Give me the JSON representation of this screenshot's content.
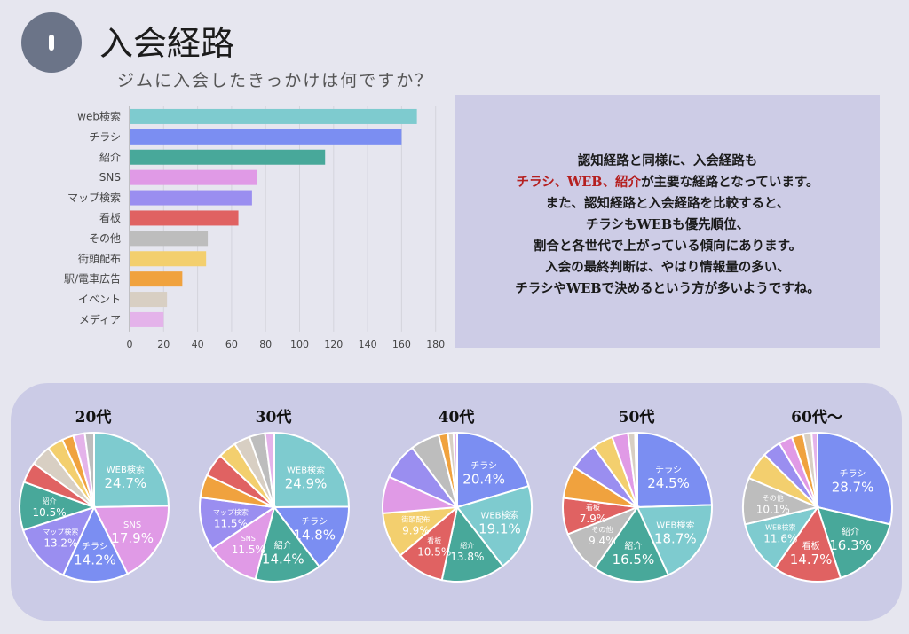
{
  "header": {
    "badge_icon": "circle-badge-icon",
    "title": "入会経路",
    "subtitle": "ジムに入会したきっかけは何ですか？"
  },
  "note": {
    "line1": "認知経路と同様に、入会経路も",
    "line2_hl": "チラシ、WEB、紹介",
    "line2_rest": "が主要な経路となっています。",
    "line3": "また、認知経路と入会経路を比較すると、",
    "line4": "チラシもWEBも優先順位、",
    "line5": "割合と各世代で上がっている傾向にあります。",
    "line6": "入会の最終判断は、やはり情報量の多い、",
    "line7": "チラシやWEBで決めるという方が多いようですね。"
  },
  "chart_data": [
    {
      "type": "bar",
      "orientation": "horizontal",
      "categories": [
        "web検索",
        "チラシ",
        "紹介",
        "SNS",
        "マップ検索",
        "看板",
        "その他",
        "街頭配布",
        "駅/電車広告",
        "イベント",
        "メディア"
      ],
      "values": [
        169,
        160,
        115,
        75,
        72,
        64,
        46,
        45,
        31,
        22,
        20
      ],
      "colors": [
        "#7ecbcf",
        "#7b8ef2",
        "#48a89a",
        "#e09ae6",
        "#9a8ef0",
        "#e06262",
        "#bdbdbd",
        "#f3cf6e",
        "#f0a23e",
        "#d8cfc3",
        "#e4b3ea"
      ],
      "xlim": [
        0,
        180
      ],
      "xticks": [
        0,
        20,
        40,
        60,
        80,
        100,
        120,
        140,
        160,
        180
      ],
      "grid": true
    },
    {
      "type": "pie",
      "title": "20代",
      "slices": [
        {
          "label": "WEB検索",
          "value": 24.7,
          "color": "#7ecbcf"
        },
        {
          "label": "SNS",
          "value": 17.9,
          "color": "#e09ae6"
        },
        {
          "label": "チラシ",
          "value": 14.2,
          "color": "#7b8ef2"
        },
        {
          "label": "マップ検索",
          "value": 13.2,
          "color": "#9a8ef0"
        },
        {
          "label": "紹介",
          "value": 10.5,
          "color": "#48a89a"
        },
        {
          "value": 4.5,
          "color": "#e06262"
        },
        {
          "value": 4.5,
          "color": "#d8cfc3"
        },
        {
          "value": 3.5,
          "color": "#f3cf6e"
        },
        {
          "value": 2.5,
          "color": "#f0a23e"
        },
        {
          "value": 2.5,
          "color": "#e4b3ea"
        },
        {
          "value": 2.0,
          "color": "#bdbdbd"
        }
      ]
    },
    {
      "type": "pie",
      "title": "30代",
      "slices": [
        {
          "label": "WEB検索",
          "value": 24.9,
          "color": "#7ecbcf"
        },
        {
          "label": "チラシ",
          "value": 14.8,
          "color": "#7b8ef2"
        },
        {
          "label": "紹介",
          "value": 14.4,
          "color": "#48a89a"
        },
        {
          "label": "SNS",
          "value": 11.5,
          "color": "#e09ae6"
        },
        {
          "label": "マップ検索",
          "value": 11.5,
          "color": "#9a8ef0"
        },
        {
          "value": 5.0,
          "color": "#f0a23e"
        },
        {
          "value": 5.0,
          "color": "#e06262"
        },
        {
          "value": 4.0,
          "color": "#f3cf6e"
        },
        {
          "value": 3.5,
          "color": "#d8cfc3"
        },
        {
          "value": 3.4,
          "color": "#bdbdbd"
        },
        {
          "value": 2.0,
          "color": "#e4b3ea"
        }
      ]
    },
    {
      "type": "pie",
      "title": "40代",
      "slices": [
        {
          "label": "チラシ",
          "value": 20.4,
          "color": "#7b8ef2"
        },
        {
          "label": "WEB検索",
          "value": 19.1,
          "color": "#7ecbcf"
        },
        {
          "label": "紹介",
          "value": 13.8,
          "color": "#48a89a"
        },
        {
          "label": "看板",
          "value": 10.5,
          "color": "#e06262"
        },
        {
          "label": "街頭配布",
          "value": 9.9,
          "color": "#f3cf6e"
        },
        {
          "value": 8.0,
          "color": "#e09ae6"
        },
        {
          "value": 8.0,
          "color": "#9a8ef0"
        },
        {
          "value": 6.3,
          "color": "#bdbdbd"
        },
        {
          "value": 2.0,
          "color": "#f0a23e"
        },
        {
          "value": 1.2,
          "color": "#d8cfc3"
        },
        {
          "value": 0.8,
          "color": "#e4b3ea"
        }
      ]
    },
    {
      "type": "pie",
      "title": "50代",
      "slices": [
        {
          "label": "チラシ",
          "value": 24.5,
          "color": "#7b8ef2"
        },
        {
          "label": "WEB検索",
          "value": 18.7,
          "color": "#7ecbcf"
        },
        {
          "label": "紹介",
          "value": 16.5,
          "color": "#48a89a"
        },
        {
          "label": "その他",
          "value": 9.4,
          "color": "#bdbdbd"
        },
        {
          "label": "看板",
          "value": 7.9,
          "color": "#e06262"
        },
        {
          "value": 7.0,
          "color": "#f0a23e"
        },
        {
          "value": 6.0,
          "color": "#9a8ef0"
        },
        {
          "value": 4.5,
          "color": "#f3cf6e"
        },
        {
          "value": 3.5,
          "color": "#e09ae6"
        },
        {
          "value": 1.5,
          "color": "#d8cfc3"
        },
        {
          "value": 0.5,
          "color": "#e4b3ea"
        }
      ]
    },
    {
      "type": "pie",
      "title": "60代〜",
      "slices": [
        {
          "label": "チラシ",
          "value": 28.7,
          "color": "#7b8ef2"
        },
        {
          "label": "紹介",
          "value": 16.3,
          "color": "#48a89a"
        },
        {
          "label": "看板",
          "value": 14.7,
          "color": "#e06262"
        },
        {
          "label": "WEB検索",
          "value": 11.6,
          "color": "#7ecbcf"
        },
        {
          "label": "その他",
          "value": 10.1,
          "color": "#bdbdbd"
        },
        {
          "value": 6.0,
          "color": "#f3cf6e"
        },
        {
          "value": 4.0,
          "color": "#9a8ef0"
        },
        {
          "value": 3.0,
          "color": "#e09ae6"
        },
        {
          "value": 2.5,
          "color": "#f0a23e"
        },
        {
          "value": 1.8,
          "color": "#d8cfc3"
        },
        {
          "value": 1.3,
          "color": "#e4b3ea"
        }
      ]
    }
  ]
}
